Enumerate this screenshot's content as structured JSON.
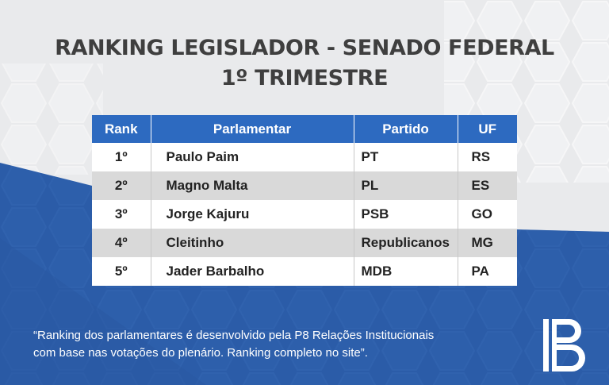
{
  "title": {
    "line1": "RANKING LEGISLADOR - SENADO FEDERAL",
    "line2": "1º TRIMESTRE"
  },
  "table": {
    "headers": [
      "Rank",
      "Parlamentar",
      "Partido",
      "UF"
    ],
    "rows": [
      [
        "1º",
        "Paulo Paim",
        "PT",
        "RS"
      ],
      [
        "2º",
        "Magno Malta",
        "PL",
        "ES"
      ],
      [
        "3º",
        "Jorge Kajuru",
        "PSB",
        "GO"
      ],
      [
        "4º",
        "Cleitinho",
        "Republicanos",
        "MG"
      ],
      [
        "5º",
        "Jader Barbalho",
        "MDB",
        "PA"
      ]
    ]
  },
  "footnote": {
    "line1": "“Ranking dos parlamentares é desenvolvido pela P8 Relações Institucionais",
    "line2": "com base nas votações do plenário. Ranking completo no site”."
  },
  "logo": {
    "icon": "p8-logo-icon"
  },
  "colors": {
    "background": "#e9eaec",
    "blue_panel": "#2b5ca8",
    "header_blue": "#2d6ac0",
    "row_alt": "#d9d9d9",
    "title_text": "#3f3f3f"
  }
}
